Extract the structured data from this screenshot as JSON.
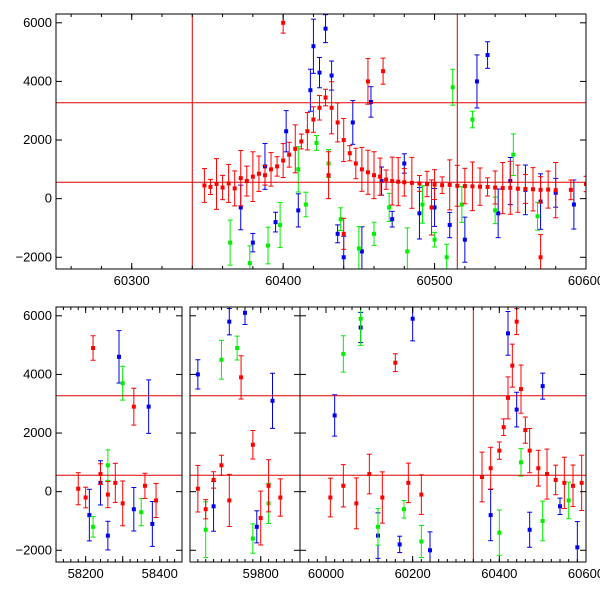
{
  "colors": {
    "red": "#ff0000",
    "green": "#00ee00",
    "blue": "#0000ee",
    "axis": "#000000",
    "refline": "#dd0000"
  },
  "chart_data": [
    {
      "type": "scatter",
      "title": "",
      "xlabel": "",
      "ylabel": "",
      "xlim": [
        60250,
        60600
      ],
      "ylim": [
        -2400,
        6300
      ],
      "x_ticks": [
        60300,
        60400,
        60500,
        60600
      ],
      "y_ticks": [
        -2000,
        0,
        2000,
        4000,
        6000
      ],
      "hlines": [
        560,
        3270
      ],
      "vlines": [
        60340,
        60515
      ],
      "error_bars": true,
      "grid": false,
      "series_colors": [
        "red",
        "green",
        "blue"
      ],
      "series": [
        {
          "color": "blue",
          "points": [
            [
              60372,
              -300
            ],
            [
              60380,
              -1500
            ],
            [
              60388,
              1100
            ],
            [
              60395,
              -800
            ],
            [
              60402,
              2300
            ],
            [
              60410,
              -400
            ],
            [
              60418,
              3700
            ],
            [
              60420,
              5200
            ],
            [
              60424,
              4300
            ],
            [
              60428,
              5800
            ],
            [
              60432,
              4200
            ],
            [
              60436,
              -1200
            ],
            [
              60440,
              -2000
            ],
            [
              60446,
              2600
            ],
            [
              60452,
              -1800
            ],
            [
              60458,
              3300
            ],
            [
              60465,
              600
            ],
            [
              60472,
              -700
            ],
            [
              60480,
              1200
            ],
            [
              60490,
              -500
            ],
            [
              60500,
              -300
            ],
            [
              60510,
              -900
            ],
            [
              60520,
              -1400
            ],
            [
              60528,
              4000
            ],
            [
              60535,
              4900
            ],
            [
              60542,
              -500
            ],
            [
              60550,
              600
            ],
            [
              60560,
              300
            ],
            [
              60570,
              -100
            ],
            [
              60580,
              200
            ],
            [
              60592,
              -200
            ]
          ]
        },
        {
          "color": "green",
          "points": [
            [
              60365,
              -1500
            ],
            [
              60378,
              -2200
            ],
            [
              60390,
              -1600
            ],
            [
              60398,
              -900
            ],
            [
              60410,
              1000
            ],
            [
              60415,
              -200
            ],
            [
              60422,
              1900
            ],
            [
              60430,
              1200
            ],
            [
              60438,
              -700
            ],
            [
              60450,
              -1700
            ],
            [
              60460,
              -1200
            ],
            [
              60470,
              -300
            ],
            [
              60482,
              -1800
            ],
            [
              60492,
              -200
            ],
            [
              60500,
              -1400
            ],
            [
              60508,
              -2000
            ],
            [
              60512,
              3800
            ],
            [
              60518,
              -200
            ],
            [
              60525,
              2700
            ],
            [
              60540,
              -400
            ],
            [
              60552,
              1500
            ],
            [
              60568,
              -600
            ]
          ]
        },
        {
          "color": "red",
          "points": [
            [
              60348,
              450
            ],
            [
              60352,
              400
            ],
            [
              60356,
              500
            ],
            [
              60360,
              380
            ],
            [
              60364,
              520
            ],
            [
              60368,
              350
            ],
            [
              60372,
              700
            ],
            [
              60376,
              600
            ],
            [
              60380,
              750
            ],
            [
              60384,
              850
            ],
            [
              60388,
              800
            ],
            [
              60392,
              1000
            ],
            [
              60396,
              1100
            ],
            [
              60400,
              1300
            ],
            [
              60404,
              1500
            ],
            [
              60408,
              1700
            ],
            [
              60412,
              1950
            ],
            [
              60416,
              2300
            ],
            [
              60420,
              2700
            ],
            [
              60424,
              3100
            ],
            [
              60428,
              3450
            ],
            [
              60432,
              3100
            ],
            [
              60436,
              2600
            ],
            [
              60440,
              2000
            ],
            [
              60444,
              1550
            ],
            [
              60448,
              1200
            ],
            [
              60452,
              1000
            ],
            [
              60456,
              900
            ],
            [
              60460,
              800
            ],
            [
              60464,
              750
            ],
            [
              60468,
              650
            ],
            [
              60472,
              600
            ],
            [
              60476,
              580
            ],
            [
              60480,
              560
            ],
            [
              60485,
              540
            ],
            [
              60490,
              520
            ],
            [
              60495,
              500
            ],
            [
              60500,
              480
            ],
            [
              60505,
              460
            ],
            [
              60510,
              470
            ],
            [
              60515,
              440
            ],
            [
              60520,
              430
            ],
            [
              60525,
              420
            ],
            [
              60530,
              410
            ],
            [
              60535,
              400
            ],
            [
              60540,
              380
            ],
            [
              60545,
              360
            ],
            [
              60550,
              370
            ],
            [
              60555,
              340
            ],
            [
              60560,
              330
            ],
            [
              60565,
              320
            ],
            [
              60570,
              300
            ],
            [
              60575,
              310
            ],
            [
              60580,
              290
            ],
            [
              60590,
              300
            ],
            [
              60400,
              6000
            ],
            [
              60456,
              4000
            ],
            [
              60466,
              4350
            ],
            [
              60430,
              800
            ],
            [
              60498,
              -300
            ],
            [
              60570,
              -2000
            ],
            [
              60440,
              -1200
            ],
            [
              60600,
              500
            ]
          ]
        }
      ]
    },
    {
      "type": "scatter",
      "title": "",
      "xlabel": "",
      "ylabel": "",
      "xlim": [
        58120,
        60600
      ],
      "x_axis_break": {
        "segments": [
          [
            58120,
            58460
          ],
          [
            59620,
            59960
          ],
          [
            59960,
            60600
          ]
        ]
      },
      "ylim": [
        -2400,
        6300
      ],
      "x_ticks": [
        58200,
        58300,
        58400,
        59800,
        60000,
        60200,
        60400,
        60600
      ],
      "x_tick_labels": [
        "58200",
        "",
        "58400",
        "59800",
        "60000",
        "60200",
        "60400",
        "60600"
      ],
      "y_ticks": [
        -2000,
        0,
        2000,
        4000,
        6000
      ],
      "hlines": [
        560,
        3270
      ],
      "vlines": [
        60340
      ],
      "error_bars": true,
      "grid": false,
      "series": [
        {
          "color": "blue",
          "points": [
            [
              58210,
              -800
            ],
            [
              58240,
              300
            ],
            [
              58260,
              -1500
            ],
            [
              58290,
              4600
            ],
            [
              58330,
              -600
            ],
            [
              58370,
              2900
            ],
            [
              58380,
              -1100
            ],
            [
              59640,
              4000
            ],
            [
              59680,
              -500
            ],
            [
              59720,
              5800
            ],
            [
              59760,
              6100
            ],
            [
              59790,
              -1200
            ],
            [
              59830,
              3100
            ],
            [
              60020,
              2600
            ],
            [
              60080,
              5600
            ],
            [
              60120,
              -1500
            ],
            [
              60170,
              -1800
            ],
            [
              60200,
              5900
            ],
            [
              60240,
              -2000
            ],
            [
              60380,
              -800
            ],
            [
              60420,
              5400
            ],
            [
              60440,
              2800
            ],
            [
              60470,
              -1300
            ],
            [
              60500,
              3600
            ],
            [
              60540,
              -500
            ],
            [
              60580,
              -1900
            ]
          ]
        },
        {
          "color": "green",
          "points": [
            [
              58220,
              -1200
            ],
            [
              58260,
              900
            ],
            [
              58300,
              3700
            ],
            [
              58350,
              -700
            ],
            [
              59660,
              -1300
            ],
            [
              59700,
              4500
            ],
            [
              59740,
              4900
            ],
            [
              59780,
              -1600
            ],
            [
              59820,
              -400
            ],
            [
              60040,
              4700
            ],
            [
              60080,
              5900
            ],
            [
              60120,
              -1200
            ],
            [
              60180,
              -600
            ],
            [
              60220,
              -1700
            ],
            [
              60400,
              -1400
            ],
            [
              60450,
              1000
            ],
            [
              60500,
              -1000
            ],
            [
              60560,
              -300
            ]
          ]
        },
        {
          "color": "red",
          "points": [
            [
              58180,
              100
            ],
            [
              58200,
              -200
            ],
            [
              58220,
              4900
            ],
            [
              58240,
              600
            ],
            [
              58260,
              -100
            ],
            [
              58280,
              300
            ],
            [
              58300,
              -400
            ],
            [
              58330,
              2900
            ],
            [
              58360,
              200
            ],
            [
              58390,
              -300
            ],
            [
              59640,
              100
            ],
            [
              59660,
              -600
            ],
            [
              59680,
              400
            ],
            [
              59700,
              900
            ],
            [
              59720,
              -300
            ],
            [
              59750,
              3900
            ],
            [
              59780,
              1600
            ],
            [
              59800,
              -900
            ],
            [
              59820,
              200
            ],
            [
              59850,
              -200
            ],
            [
              60010,
              -200
            ],
            [
              60040,
              200
            ],
            [
              60070,
              -400
            ],
            [
              60100,
              600
            ],
            [
              60130,
              -200
            ],
            [
              60160,
              4400
            ],
            [
              60190,
              300
            ],
            [
              60220,
              -100
            ],
            [
              60360,
              500
            ],
            [
              60380,
              800
            ],
            [
              60400,
              1400
            ],
            [
              60410,
              2200
            ],
            [
              60420,
              3200
            ],
            [
              60430,
              4300
            ],
            [
              60440,
              5800
            ],
            [
              60450,
              3500
            ],
            [
              60460,
              2100
            ],
            [
              60470,
              1400
            ],
            [
              60490,
              800
            ],
            [
              60510,
              600
            ],
            [
              60530,
              400
            ],
            [
              60550,
              300
            ],
            [
              60570,
              200
            ],
            [
              60590,
              300
            ]
          ]
        }
      ]
    }
  ]
}
